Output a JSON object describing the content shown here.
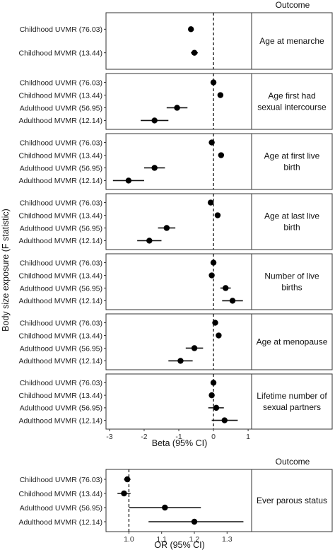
{
  "figure": {
    "outcome_header": "Outcome",
    "y_axis_title": "Body size exposure (F statistic)"
  },
  "chart_data": [
    {
      "type": "scatter",
      "subtype": "forest_plot",
      "xlabel": "Beta (95% CI)",
      "xlim": [
        -3.1,
        1.1
      ],
      "xticks": [
        -3,
        -2,
        -1,
        0,
        1
      ],
      "reference_line": 0,
      "panels": [
        {
          "outcome": [
            "Age at menarche"
          ],
          "rows": [
            {
              "label": "Childhood UVMR (76.03)",
              "est": -0.65,
              "lo": -0.72,
              "hi": -0.58
            },
            {
              "label": "Childhood MVMR (13.44)",
              "est": -0.55,
              "lo": -0.65,
              "hi": -0.45
            }
          ]
        },
        {
          "outcome": [
            "Age first had",
            "sexual intercourse"
          ],
          "rows": [
            {
              "label": "Childhood UVMR (76.03)",
              "est": 0.0,
              "lo": -0.06,
              "hi": 0.06
            },
            {
              "label": "Childhood MVMR (13.44)",
              "est": 0.2,
              "lo": 0.12,
              "hi": 0.28
            },
            {
              "label": "Adulthood UVMR (56.95)",
              "est": -1.05,
              "lo": -1.35,
              "hi": -0.75
            },
            {
              "label": "Adulthood MVMR (12.14)",
              "est": -1.7,
              "lo": -2.1,
              "hi": -1.3
            }
          ]
        },
        {
          "outcome": [
            "Age at first live",
            "birth"
          ],
          "rows": [
            {
              "label": "Childhood UVMR (76.03)",
              "est": -0.05,
              "lo": -0.12,
              "hi": 0.02
            },
            {
              "label": "Childhood MVMR (13.44)",
              "est": 0.22,
              "lo": 0.14,
              "hi": 0.3
            },
            {
              "label": "Adulthood UVMR (56.95)",
              "est": -1.7,
              "lo": -2.0,
              "hi": -1.4
            },
            {
              "label": "Adulthood MVMR (12.14)",
              "est": -2.45,
              "lo": -2.9,
              "hi": -2.0
            }
          ]
        },
        {
          "outcome": [
            "Age at last live",
            "birth"
          ],
          "rows": [
            {
              "label": "Childhood UVMR (76.03)",
              "est": -0.08,
              "lo": -0.15,
              "hi": -0.01
            },
            {
              "label": "Childhood MVMR (13.44)",
              "est": 0.12,
              "lo": 0.04,
              "hi": 0.2
            },
            {
              "label": "Adulthood UVMR (56.95)",
              "est": -1.35,
              "lo": -1.6,
              "hi": -1.1
            },
            {
              "label": "Adulthood MVMR (12.14)",
              "est": -1.85,
              "lo": -2.2,
              "hi": -1.5
            }
          ]
        },
        {
          "outcome": [
            "Number of live",
            "births"
          ],
          "rows": [
            {
              "label": "Childhood UVMR (76.03)",
              "est": 0.0,
              "lo": -0.05,
              "hi": 0.05
            },
            {
              "label": "Childhood MVMR (13.44)",
              "est": -0.05,
              "lo": -0.1,
              "hi": 0.0
            },
            {
              "label": "Adulthood UVMR (56.95)",
              "est": 0.35,
              "lo": 0.2,
              "hi": 0.5
            },
            {
              "label": "Adulthood MVMR (12.14)",
              "est": 0.55,
              "lo": 0.25,
              "hi": 0.85
            }
          ]
        },
        {
          "outcome": [
            "Age at menopause"
          ],
          "rows": [
            {
              "label": "Childhood UVMR (76.03)",
              "est": 0.05,
              "lo": -0.02,
              "hi": 0.12
            },
            {
              "label": "Childhood MVMR (13.44)",
              "est": 0.15,
              "lo": 0.07,
              "hi": 0.23
            },
            {
              "label": "Adulthood UVMR (56.95)",
              "est": -0.55,
              "lo": -0.8,
              "hi": -0.3
            },
            {
              "label": "Adulthood MVMR (12.14)",
              "est": -0.95,
              "lo": -1.3,
              "hi": -0.6
            }
          ]
        },
        {
          "outcome": [
            "Lifetime number of",
            "sexual partners"
          ],
          "rows": [
            {
              "label": "Childhood UVMR (76.03)",
              "est": 0.0,
              "lo": -0.05,
              "hi": 0.05
            },
            {
              "label": "Childhood MVMR (13.44)",
              "est": -0.05,
              "lo": -0.1,
              "hi": 0.0
            },
            {
              "label": "Adulthood UVMR (56.95)",
              "est": 0.08,
              "lo": -0.15,
              "hi": 0.3
            },
            {
              "label": "Adulthood MVMR (12.14)",
              "est": 0.32,
              "lo": -0.05,
              "hi": 0.7
            }
          ]
        }
      ]
    },
    {
      "type": "scatter",
      "subtype": "forest_plot",
      "xlabel": "OR (95% CI)",
      "xlim": [
        0.93,
        1.375
      ],
      "xticks": [
        1.0,
        1.1,
        1.2,
        1.3
      ],
      "xtick_labels": [
        "1.0",
        "1.1",
        "1.2",
        "1.3"
      ],
      "reference_line": 1.0,
      "panels": [
        {
          "outcome": [
            "Ever parous status"
          ],
          "rows": [
            {
              "label": "Childhood UVMR (76.03)",
              "est": 0.995,
              "lo": 0.985,
              "hi": 1.005
            },
            {
              "label": "Childhood MVMR (13.44)",
              "est": 0.985,
              "lo": 0.965,
              "hi": 1.005
            },
            {
              "label": "Adulthood UVMR (56.95)",
              "est": 1.11,
              "lo": 1.0,
              "hi": 1.22
            },
            {
              "label": "Adulthood MVMR (12.14)",
              "est": 1.2,
              "lo": 1.06,
              "hi": 1.35
            }
          ]
        }
      ]
    }
  ]
}
